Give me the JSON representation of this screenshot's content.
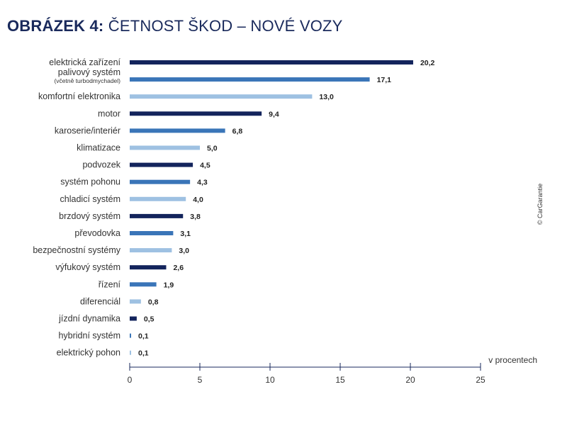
{
  "title": {
    "prefix": "OBRÁZEK 4:",
    "text": "ČETNOST ŠKOD – NOVÉ VOZY"
  },
  "credit": "© CarGarantie",
  "colors": {
    "dark": "#13245c",
    "mid": "#3a75b8",
    "light": "#9ec1e2",
    "axis": "#1a2a5c"
  },
  "chart_data": {
    "type": "bar",
    "orientation": "horizontal",
    "title": "ČETNOST ŠKOD – NOVÉ VOZY",
    "xlabel": "v procentech",
    "ylabel": "",
    "xlim": [
      0,
      25
    ],
    "xticks": [
      0,
      5,
      10,
      15,
      20,
      25
    ],
    "categories": [
      "elektrická zařízení",
      "palivový systém",
      "komfortní elektronika",
      "motor",
      "karoserie/interiér",
      "klimatizace",
      "podvozek",
      "systém pohonu",
      "chladicí systém",
      "brzdový systém",
      "převodovka",
      "bezpečnostní systémy",
      "výfukový systém",
      "řízení",
      "diferenciál",
      "jízdní dynamika",
      "hybridní systém",
      "elektrický pohon"
    ],
    "subtitles": [
      "",
      "(včetně turbodmychadel)",
      "",
      "",
      "",
      "",
      "",
      "",
      "",
      "",
      "",
      "",
      "",
      "",
      "",
      "",
      "",
      ""
    ],
    "values": [
      20.2,
      17.1,
      13.0,
      9.4,
      6.8,
      5.0,
      4.5,
      4.3,
      4.0,
      3.8,
      3.1,
      3.0,
      2.6,
      1.9,
      0.8,
      0.5,
      0.1,
      0.1
    ],
    "value_labels": [
      "20,2",
      "17,1",
      "13,0",
      "9,4",
      "6,8",
      "5,0",
      "4,5",
      "4,3",
      "4,0",
      "3,8",
      "3,1",
      "3,0",
      "2,6",
      "1,9",
      "0,8",
      "0,5",
      "0,1",
      "0,1"
    ],
    "shades": [
      "dark",
      "mid",
      "light",
      "dark",
      "mid",
      "light",
      "dark",
      "mid",
      "light",
      "dark",
      "mid",
      "light",
      "dark",
      "mid",
      "light",
      "dark",
      "mid",
      "light"
    ]
  }
}
